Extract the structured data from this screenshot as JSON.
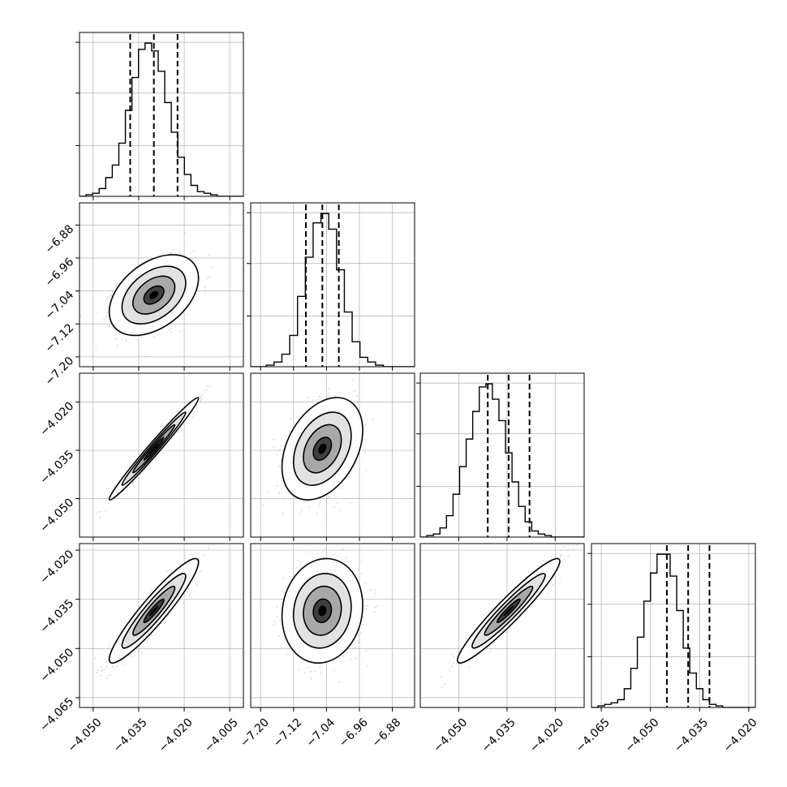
{
  "chart_data": {
    "type": "corner",
    "parameters": 4,
    "grid": true,
    "colors": {
      "line": "#000000",
      "grid": "#b0b0b0",
      "scatter": "#9a9a9a",
      "quantile": "#000000"
    },
    "x_tick_labels": [
      [
        "−4.050",
        "−4.035",
        "−4.020",
        "−4.005"
      ],
      [
        "−7.20",
        "−7.12",
        "−7.04",
        "−6.96",
        "−6.88"
      ],
      [
        "−4.050",
        "−4.035",
        "−4.020"
      ],
      [
        "−4.065",
        "−4.050",
        "−4.035",
        "−4.020"
      ]
    ],
    "y_tick_labels": [
      [],
      [
        "−6.88",
        "−6.96",
        "−7.04",
        "−7.12",
        "−7.20"
      ],
      [
        "−4.020",
        "−4.035",
        "−4.050"
      ],
      [
        "−4.020",
        "−4.035",
        "−4.050",
        "−4.065"
      ]
    ],
    "parameter_ranges": [
      [
        -4.0545,
        -4.0005
      ],
      [
        -7.224,
        -6.826
      ],
      [
        -4.062,
        -4.011
      ],
      [
        -4.068,
        -4.018
      ]
    ],
    "x_ticks": [
      [
        -4.05,
        -4.035,
        -4.02,
        -4.005
      ],
      [
        -7.2,
        -7.12,
        -7.04,
        -6.96,
        -6.88
      ],
      [
        -4.05,
        -4.035,
        -4.02
      ],
      [
        -4.065,
        -4.05,
        -4.035,
        -4.02
      ]
    ],
    "y_ticks": [
      [],
      [
        -6.88,
        -6.96,
        -7.04,
        -7.12,
        -7.2
      ],
      [
        -4.02,
        -4.035,
        -4.05
      ],
      [
        -4.02,
        -4.035,
        -4.05,
        -4.065
      ]
    ],
    "marginals": [
      {
        "quantiles": [
          -4.0378,
          -4.03,
          -4.0222
        ],
        "bins_start": -4.0545,
        "bins_end": -4.0005,
        "counts": [
          0,
          1,
          2,
          5,
          12,
          20,
          34,
          55,
          76,
          94,
          98,
          93,
          80,
          60,
          41,
          25,
          14,
          7,
          3,
          2,
          1,
          0,
          0,
          0,
          0
        ]
      },
      {
        "quantiles": [
          -7.09,
          -7.05,
          -7.01
        ],
        "bins_start": -7.224,
        "bins_end": -6.826,
        "counts": [
          0,
          0,
          1,
          3,
          8,
          20,
          45,
          70,
          92,
          98,
          88,
          62,
          35,
          16,
          6,
          3,
          1,
          0,
          0,
          0,
          0
        ]
      },
      {
        "quantiles": [
          -4.041,
          -4.0345,
          -4.028
        ],
        "bins_start": -4.062,
        "bins_end": -4.011,
        "counts": [
          0,
          1,
          2,
          6,
          14,
          28,
          46,
          64,
          82,
          98,
          100,
          90,
          76,
          55,
          36,
          20,
          10,
          4,
          2,
          1,
          0,
          0,
          0,
          0,
          0
        ]
      },
      {
        "quantiles": [
          -4.045,
          -4.0385,
          -4.032
        ],
        "bins_start": -4.068,
        "bins_end": -4.018,
        "counts": [
          0,
          1,
          2,
          3,
          5,
          12,
          25,
          45,
          68,
          86,
          98,
          98,
          84,
          62,
          38,
          22,
          12,
          5,
          2,
          1,
          0,
          0,
          0,
          0,
          0
        ]
      }
    ],
    "pairs": [
      {
        "row": 1,
        "col": 0,
        "mean": [
          -4.03,
          -7.05
        ],
        "sd": [
          0.006,
          0.04
        ],
        "corr": 0.42
      },
      {
        "row": 2,
        "col": 0,
        "mean": [
          -4.03,
          -4.0345
        ],
        "sd": [
          0.006,
          0.0065
        ],
        "corr": 0.985
      },
      {
        "row": 2,
        "col": 1,
        "mean": [
          -7.05,
          -4.0345
        ],
        "sd": [
          0.04,
          0.0065
        ],
        "corr": 0.36
      },
      {
        "row": 3,
        "col": 0,
        "mean": [
          -4.03,
          -4.0385
        ],
        "sd": [
          0.006,
          0.0065
        ],
        "corr": 0.93
      },
      {
        "row": 3,
        "col": 1,
        "mean": [
          -7.05,
          -4.0385
        ],
        "sd": [
          0.04,
          0.0065
        ],
        "corr": 0.1
      },
      {
        "row": 3,
        "col": 2,
        "mean": [
          -4.0345,
          -4.0385
        ],
        "sd": [
          0.0065,
          0.0065
        ],
        "corr": 0.95
      }
    ]
  }
}
